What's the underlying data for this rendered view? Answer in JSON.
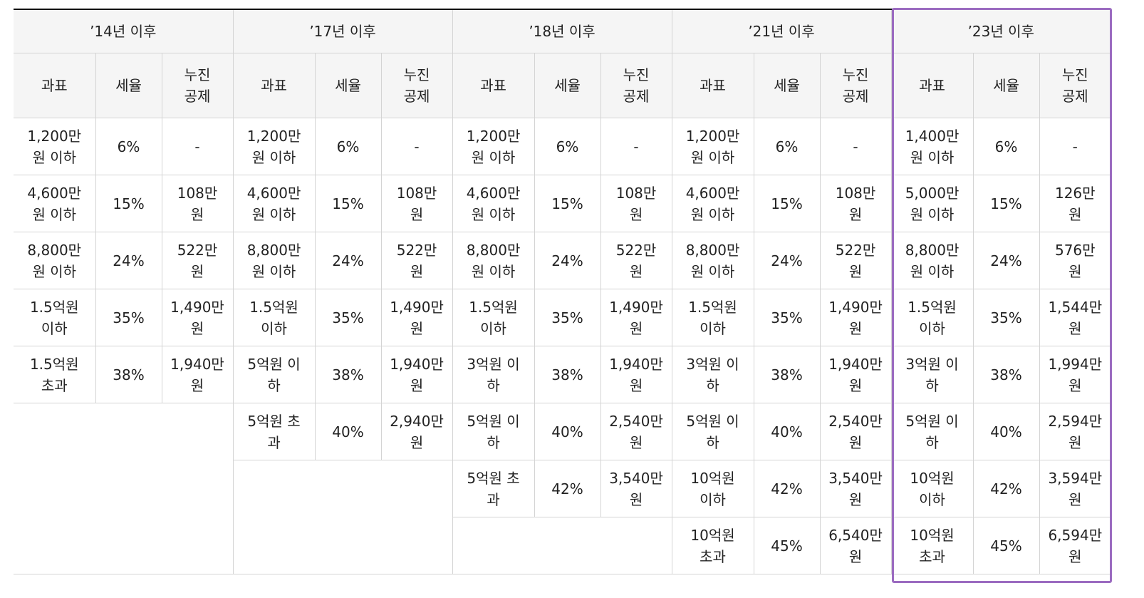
{
  "table": {
    "periods": [
      "’14년 이후",
      "’17년 이후",
      "’18년 이후",
      "’21년 이후",
      "’23년 이후"
    ],
    "sub_headers": [
      "과표",
      "세율",
      "누진\n공제"
    ],
    "rows": [
      {
        "cells": [
          [
            "1,200만\n원 이하",
            "6%",
            "-"
          ],
          [
            "1,200만\n원 이하",
            "6%",
            "-"
          ],
          [
            "1,200만\n원 이하",
            "6%",
            "-"
          ],
          [
            "1,200만\n원 이하",
            "6%",
            "-"
          ],
          [
            "1,400만\n원 이하",
            "6%",
            "-"
          ]
        ]
      },
      {
        "cells": [
          [
            "4,600만\n원 이하",
            "15%",
            "108만\n원"
          ],
          [
            "4,600만\n원 이하",
            "15%",
            "108만\n원"
          ],
          [
            "4,600만\n원 이하",
            "15%",
            "108만\n원"
          ],
          [
            "4,600만\n원 이하",
            "15%",
            "108만\n원"
          ],
          [
            "5,000만\n원 이하",
            "15%",
            "126만\n원"
          ]
        ]
      },
      {
        "cells": [
          [
            "8,800만\n원 이하",
            "24%",
            "522만\n원"
          ],
          [
            "8,800만\n원 이하",
            "24%",
            "522만\n원"
          ],
          [
            "8,800만\n원 이하",
            "24%",
            "522만\n원"
          ],
          [
            "8,800만\n원 이하",
            "24%",
            "522만\n원"
          ],
          [
            "8,800만\n원 이하",
            "24%",
            "576만\n원"
          ]
        ]
      },
      {
        "cells": [
          [
            "1.5억원\n이하",
            "35%",
            "1,490만\n원"
          ],
          [
            "1.5억원\n이하",
            "35%",
            "1,490만\n원"
          ],
          [
            "1.5억원\n이하",
            "35%",
            "1,490만\n원"
          ],
          [
            "1.5억원\n이하",
            "35%",
            "1,490만\n원"
          ],
          [
            "1.5억원\n이하",
            "35%",
            "1,544만\n원"
          ]
        ]
      },
      {
        "cells": [
          [
            "1.5억원\n초과",
            "38%",
            "1,940만\n원"
          ],
          [
            "5억원 이\n하",
            "38%",
            "1,940만\n원"
          ],
          [
            "3억원 이\n하",
            "38%",
            "1,940만\n원"
          ],
          [
            "3억원 이\n하",
            "38%",
            "1,940만\n원"
          ],
          [
            "3억원 이\n하",
            "38%",
            "1,994만\n원"
          ]
        ]
      },
      {
        "cells": [
          null,
          [
            "5억원 초\n과",
            "40%",
            "2,940만\n원"
          ],
          [
            "5억원 이\n하",
            "40%",
            "2,540만\n원"
          ],
          [
            "5억원 이\n하",
            "40%",
            "2,540만\n원"
          ],
          [
            "5억원 이\n하",
            "40%",
            "2,594만\n원"
          ]
        ]
      },
      {
        "cells": [
          null,
          null,
          [
            "5억원 초\n과",
            "42%",
            "3,540만\n원"
          ],
          [
            "10억원\n이하",
            "42%",
            "3,540만\n원"
          ],
          [
            "10억원\n이하",
            "42%",
            "3,594만\n원"
          ]
        ]
      },
      {
        "cells": [
          null,
          null,
          null,
          [
            "10억원\n초과",
            "45%",
            "6,540만\n원"
          ],
          [
            "10억원\n초과",
            "45%",
            "6,594만\n원"
          ]
        ]
      }
    ]
  },
  "colors": {
    "highlight_border": "#9b6bc0",
    "header_bg": "#f5f5f5",
    "grid": "#d4d4d4"
  }
}
